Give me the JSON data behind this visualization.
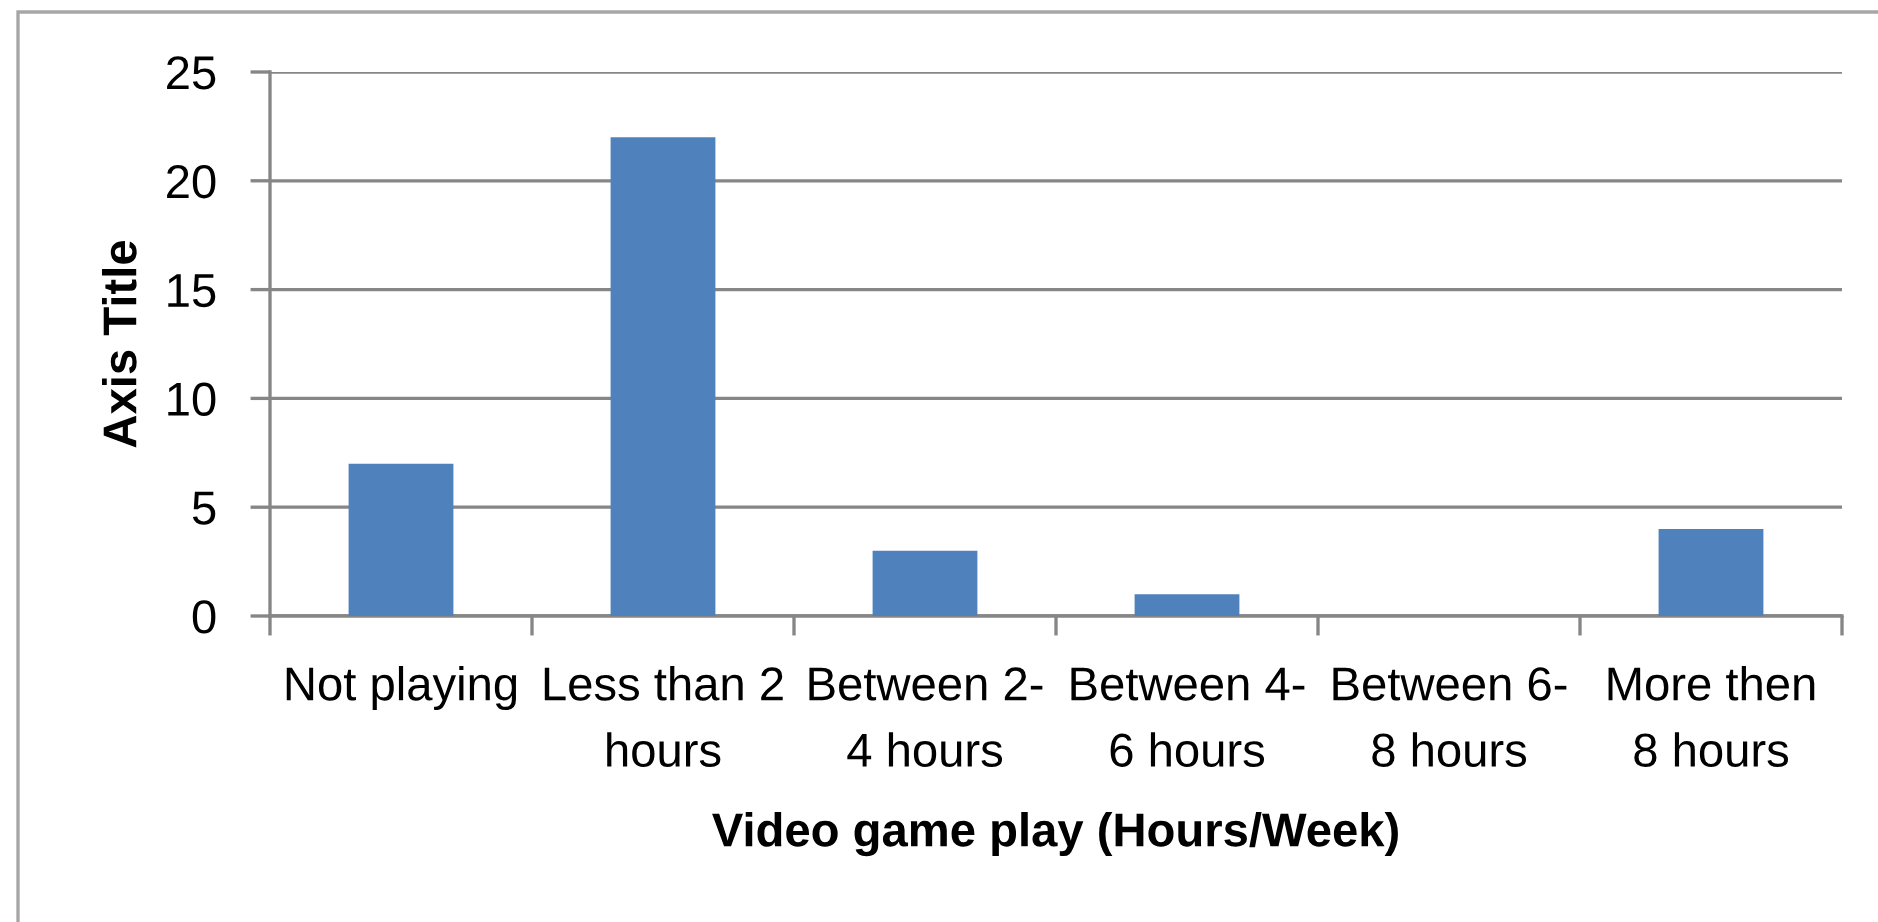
{
  "chart_data": {
    "type": "bar",
    "categories": [
      "Not playing",
      "Less than 2\nhours",
      "Between 2-\n4 hours",
      "Between 4-\n6 hours",
      "Between 6-\n8 hours",
      "More then\n8 hours"
    ],
    "values": [
      7,
      22,
      3,
      1,
      0,
      4
    ],
    "color": "#4f81bd",
    "xlabel": "Video game play (Hours/Week)",
    "ylabel": "Axis Title",
    "ylim": [
      0,
      25
    ],
    "yticks": [
      0,
      5,
      10,
      15,
      20,
      25
    ],
    "grid": "y",
    "legend": false
  }
}
